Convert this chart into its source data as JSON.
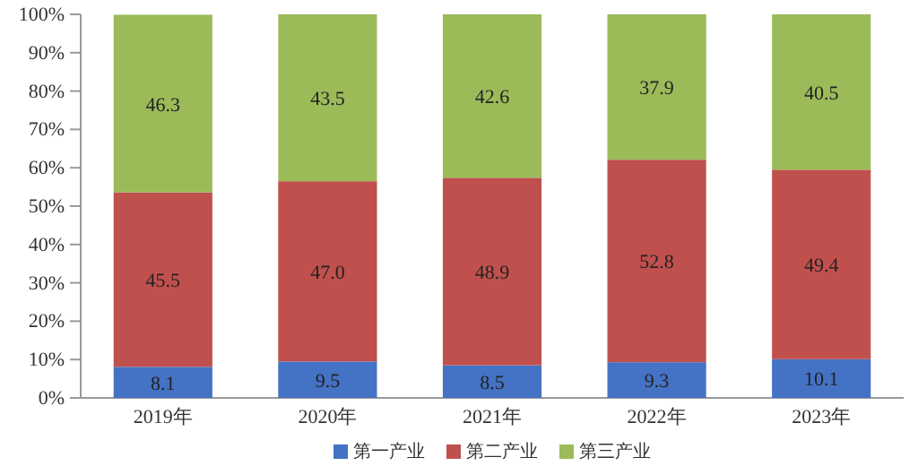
{
  "chart_data": {
    "type": "bar",
    "stacked": true,
    "legend": "bottom",
    "grid": false,
    "categories": [
      "2019年",
      "2020年",
      "2021年",
      "2022年",
      "2023年"
    ],
    "ylim": [
      0,
      100
    ],
    "yticks": [
      {
        "value": 0,
        "label": "0%"
      },
      {
        "value": 10,
        "label": "10%"
      },
      {
        "value": 20,
        "label": "20%"
      },
      {
        "value": 30,
        "label": "30%"
      },
      {
        "value": 40,
        "label": "40%"
      },
      {
        "value": 50,
        "label": "50%"
      },
      {
        "value": 60,
        "label": "60%"
      },
      {
        "value": 70,
        "label": "70%"
      },
      {
        "value": 80,
        "label": "80%"
      },
      {
        "value": 90,
        "label": "90%"
      },
      {
        "value": 100,
        "label": "100%"
      }
    ],
    "series": [
      {
        "name": "第一产业",
        "color": "#4472c4",
        "values": [
          8.1,
          9.5,
          8.5,
          9.3,
          10.1
        ],
        "value_labels": [
          "8.1",
          "9.5",
          "8.5",
          "9.3",
          "10.1"
        ]
      },
      {
        "name": "第二产业",
        "color": "#c0504d",
        "values": [
          45.5,
          47.0,
          48.9,
          52.8,
          49.4
        ],
        "value_labels": [
          "45.5",
          "47.0",
          "48.9",
          "52.8",
          "49.4"
        ]
      },
      {
        "name": "第三产业",
        "color": "#9bbb59",
        "values": [
          46.3,
          43.5,
          42.6,
          37.9,
          40.5
        ],
        "value_labels": [
          "46.3",
          "43.5",
          "42.6",
          "37.9",
          "40.5"
        ]
      }
    ]
  }
}
